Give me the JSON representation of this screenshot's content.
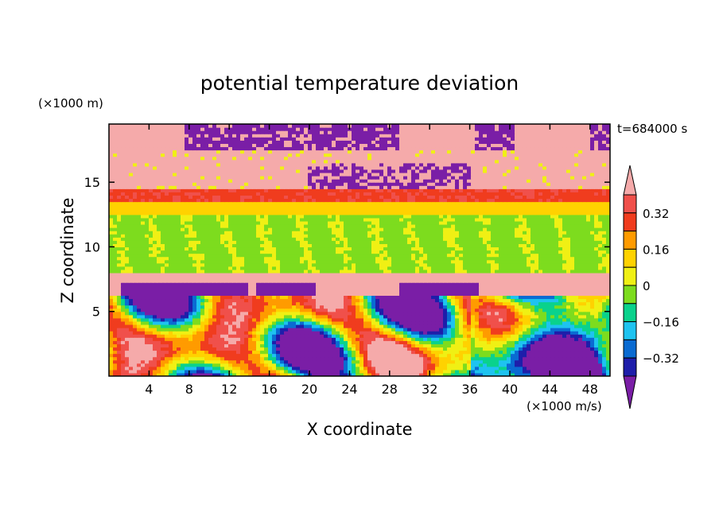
{
  "chart_data": {
    "type": "heatmap",
    "title": "potential temperature deviation",
    "xlabel": "X coordinate",
    "ylabel": "Z coordinate",
    "x_unit": "(×1000 m/s)",
    "y_unit": "(×1000 m)",
    "time_label": "t=684000 s",
    "xlim": [
      0,
      50
    ],
    "ylim": [
      0,
      19.5
    ],
    "x_ticks": [
      4,
      8,
      12,
      16,
      20,
      24,
      28,
      32,
      36,
      40,
      44,
      48
    ],
    "y_ticks": [
      5,
      10,
      15
    ],
    "colorbar": {
      "levels": [
        -0.4,
        -0.32,
        -0.24,
        -0.16,
        -0.08,
        0,
        0.08,
        0.16,
        0.24,
        0.32,
        0.4
      ],
      "tick_values": [
        0.32,
        0.16,
        0,
        -0.16,
        -0.32
      ],
      "tick_labels": [
        "0.32",
        "0.16",
        "0",
        "−0.16",
        "−0.32"
      ],
      "colors": [
        "#7a1ea6",
        "#1e1eaa",
        "#0a6bd2",
        "#1ec3f0",
        "#0ad28c",
        "#7ddc1e",
        "#f0f014",
        "#ffd200",
        "#ff9b00",
        "#f03c1e",
        "#f0504b",
        "#f5aaaa"
      ],
      "extend": "both"
    },
    "bands": [
      {
        "z_range": [
          17.5,
          19.5
        ],
        "description_value": "mostly below -0.4 with above 0.4 patches"
      },
      {
        "z_range": [
          14.5,
          17.5
        ],
        "description_value": "above 0.4"
      },
      {
        "z_range": [
          13.5,
          14.5
        ],
        "description_value": "0.24 to 0.4"
      },
      {
        "z_range": [
          7.8,
          13.5
        ],
        "description_value": "-0.08 to 0.08"
      },
      {
        "z_range": [
          7.2,
          7.8
        ],
        "description_value": "above 0.4"
      },
      {
        "z_range": [
          0,
          7.2
        ],
        "description_value": "mixed -0.4 to 0.4"
      }
    ]
  }
}
